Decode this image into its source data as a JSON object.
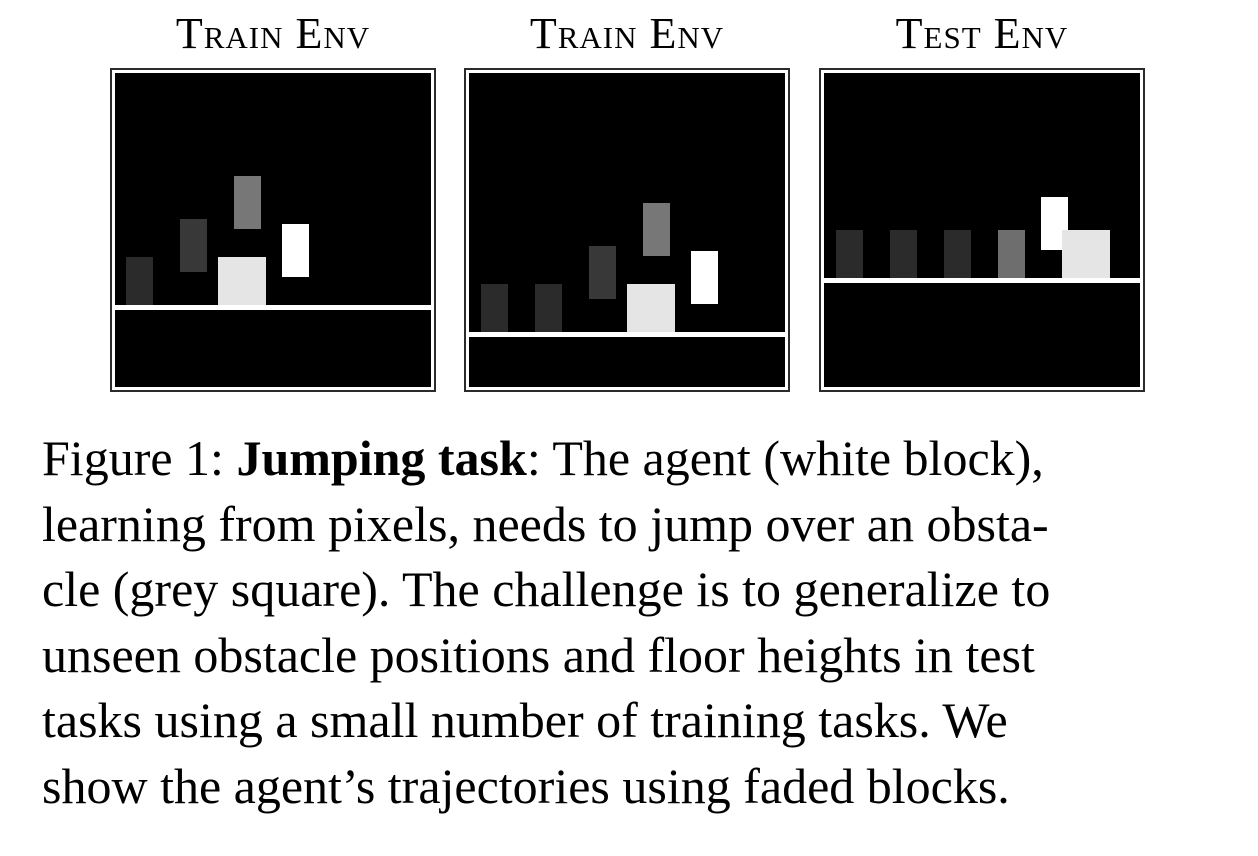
{
  "panels": [
    {
      "title": "Train Env",
      "floor_level": 0.26,
      "blocks": [
        {
          "kind": "trajectory",
          "shade": "#2b2b2b"
        },
        {
          "kind": "trajectory",
          "shade": "#383838"
        },
        {
          "kind": "trajectory",
          "shade": "#777777"
        },
        {
          "kind": "agent",
          "shade": "#ffffff"
        },
        {
          "kind": "obstacle",
          "shade": "#e5e5e5"
        }
      ]
    },
    {
      "title": "Train Env",
      "floor_level": 0.18,
      "blocks": [
        {
          "kind": "trajectory",
          "shade": "#2b2b2b"
        },
        {
          "kind": "trajectory",
          "shade": "#2b2b2b"
        },
        {
          "kind": "trajectory",
          "shade": "#383838"
        },
        {
          "kind": "trajectory",
          "shade": "#777777"
        },
        {
          "kind": "agent",
          "shade": "#ffffff"
        },
        {
          "kind": "obstacle",
          "shade": "#e5e5e5"
        }
      ]
    },
    {
      "title": "Test Env",
      "floor_level": 0.35,
      "blocks": [
        {
          "kind": "trajectory",
          "shade": "#2b2b2b"
        },
        {
          "kind": "trajectory",
          "shade": "#2b2b2b"
        },
        {
          "kind": "trajectory",
          "shade": "#2b2b2b"
        },
        {
          "kind": "trajectory",
          "shade": "#6e6e6e"
        },
        {
          "kind": "agent",
          "shade": "#ffffff"
        },
        {
          "kind": "obstacle",
          "shade": "#e5e5e5"
        }
      ]
    }
  ],
  "caption": {
    "label": "Figure 1: ",
    "bold": "Jumping task",
    "first_line_rest": ": The agent (white block),",
    "lines": [
      "learning from pixels, needs to jump over an obsta-",
      "cle (grey square). The challenge is to generalize to",
      "unseen obstacle positions and floor heights in test",
      "tasks using a small number of training tasks. We",
      "show the agent’s trajectories using faded blocks."
    ]
  }
}
